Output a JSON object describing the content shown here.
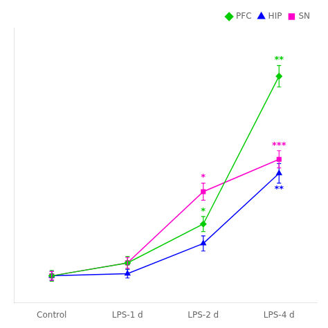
{
  "chart_data": {
    "type": "line",
    "categories": [
      "Control",
      "LPS-1 d",
      "LPS-2 d",
      "LPS-4 d"
    ],
    "series": [
      {
        "name": "PFC",
        "color": "#00cc00",
        "marker": "diamond",
        "values": [
          1.0,
          1.12,
          1.48,
          2.85
        ],
        "errors": [
          0.05,
          0.06,
          0.07,
          0.1
        ]
      },
      {
        "name": "HIP",
        "color": "#0000ff",
        "marker": "triangle",
        "values": [
          1.0,
          1.02,
          1.3,
          1.95
        ],
        "errors": [
          0.04,
          0.04,
          0.07,
          0.09
        ]
      },
      {
        "name": "SN",
        "color": "#ff00cc",
        "marker": "square",
        "values": [
          1.0,
          1.12,
          1.78,
          2.08
        ],
        "errors": [
          0.04,
          0.05,
          0.08,
          0.08
        ]
      }
    ],
    "ylim": [
      0.75,
      3.3
    ],
    "tick_labels": "x",
    "grid": false,
    "legend": "upper right",
    "annotations": [
      {
        "text": "*",
        "category": "LPS-2 d",
        "series": "SN",
        "side": "above"
      },
      {
        "text": "*",
        "category": "LPS-2 d",
        "series": "PFC",
        "side": "above"
      },
      {
        "text": "**",
        "category": "LPS-4 d",
        "series": "PFC",
        "side": "above"
      },
      {
        "text": "**",
        "category": "LPS-4 d",
        "series": "HIP",
        "side": "below"
      },
      {
        "text": "***",
        "category": "LPS-4 d",
        "series": "SN",
        "side": "above"
      }
    ]
  }
}
